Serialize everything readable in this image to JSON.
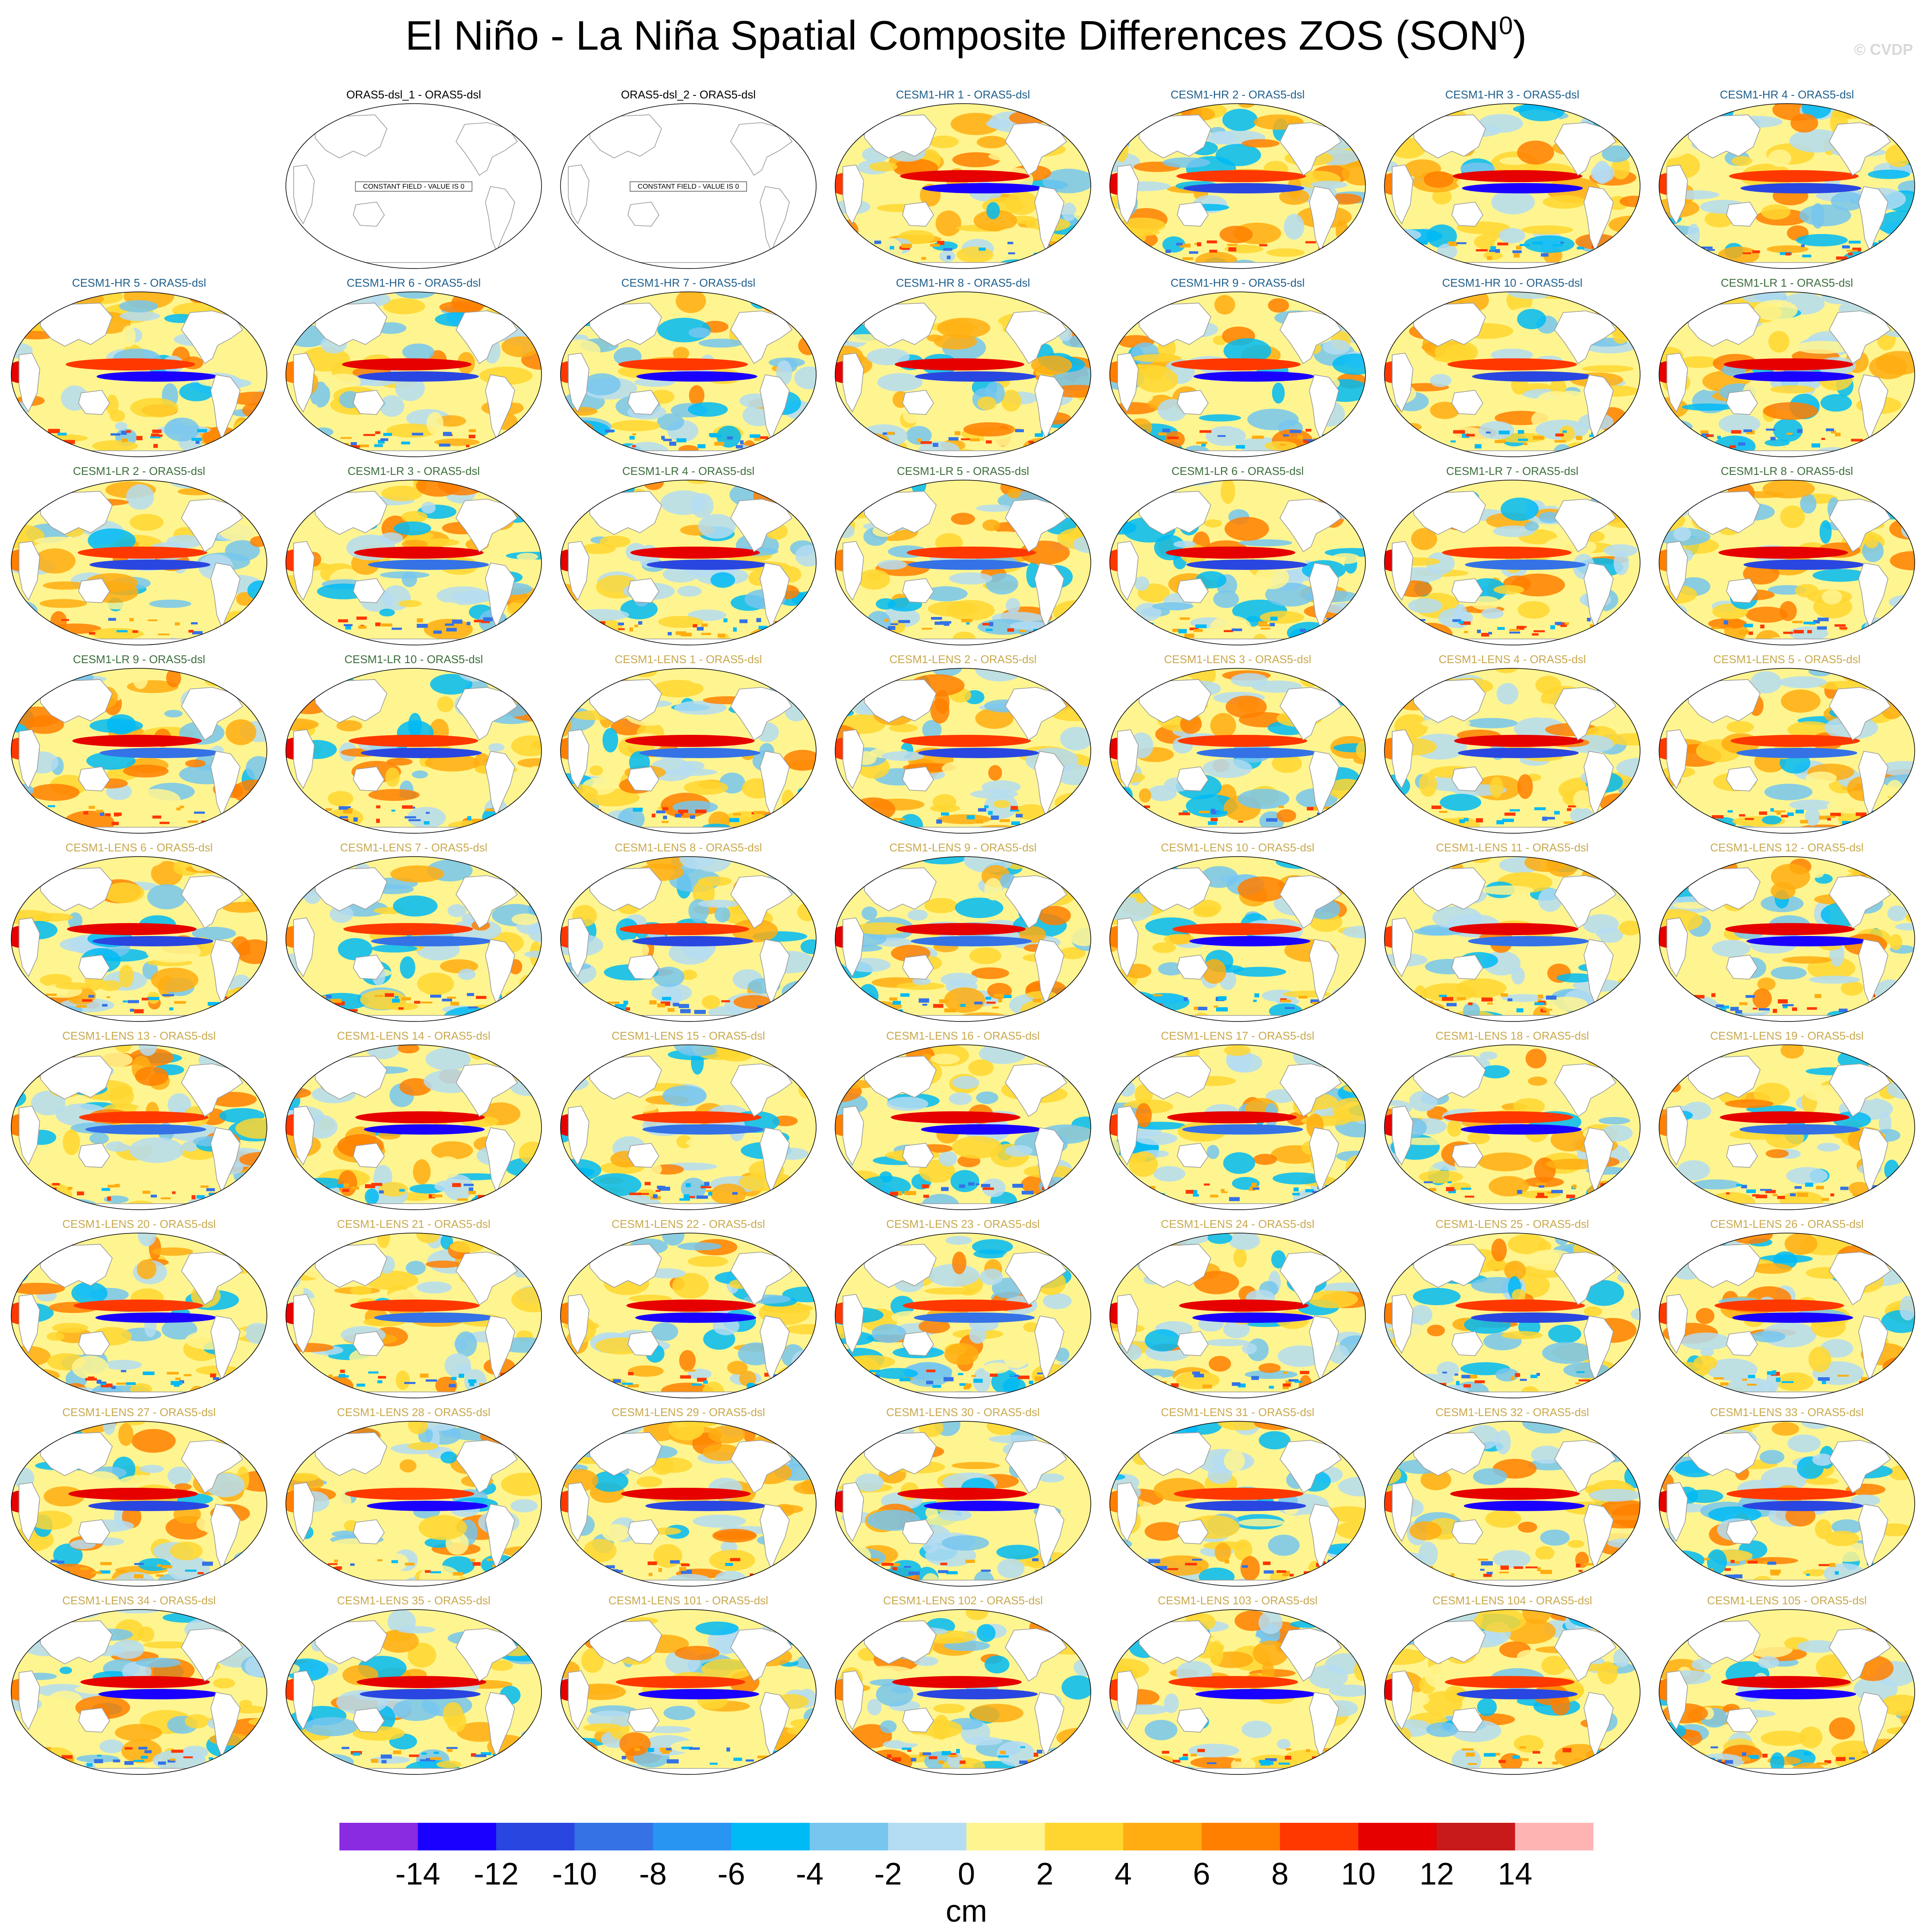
{
  "title": "El Niño - La Niña Spatial Composite Differences ZOS (SON",
  "title_sup": "0",
  "title_end": ")",
  "watermark": "© CVDP",
  "constant_field_label": "CONSTANT FIELD - VALUE IS 0",
  "group_colors": {
    "ORAS5": "#000000",
    "CESM1-HR": "#1f5f8c",
    "CESM1-LR": "#3c6e3c",
    "CESM1-LENS": "#c9a94e"
  },
  "panels": [
    {
      "title": "ORAS5-dsl_1 - ORAS5-dsl",
      "group": "ORAS5",
      "constant": true
    },
    {
      "title": "ORAS5-dsl_2 - ORAS5-dsl",
      "group": "ORAS5",
      "constant": true
    },
    {
      "title": "CESM1-HR 1 - ORAS5-dsl",
      "group": "CESM1-HR"
    },
    {
      "title": "CESM1-HR 2 - ORAS5-dsl",
      "group": "CESM1-HR"
    },
    {
      "title": "CESM1-HR 3 - ORAS5-dsl",
      "group": "CESM1-HR"
    },
    {
      "title": "CESM1-HR 4 - ORAS5-dsl",
      "group": "CESM1-HR"
    },
    {
      "title": "CESM1-HR 5 - ORAS5-dsl",
      "group": "CESM1-HR"
    },
    {
      "title": "CESM1-HR 6 - ORAS5-dsl",
      "group": "CESM1-HR"
    },
    {
      "title": "CESM1-HR 7 - ORAS5-dsl",
      "group": "CESM1-HR"
    },
    {
      "title": "CESM1-HR 8 - ORAS5-dsl",
      "group": "CESM1-HR"
    },
    {
      "title": "CESM1-HR 9 - ORAS5-dsl",
      "group": "CESM1-HR"
    },
    {
      "title": "CESM1-HR 10 - ORAS5-dsl",
      "group": "CESM1-HR"
    },
    {
      "title": "CESM1-LR 1 - ORAS5-dsl",
      "group": "CESM1-LR"
    },
    {
      "title": "CESM1-LR 2 - ORAS5-dsl",
      "group": "CESM1-LR"
    },
    {
      "title": "CESM1-LR 3 - ORAS5-dsl",
      "group": "CESM1-LR"
    },
    {
      "title": "CESM1-LR 4 - ORAS5-dsl",
      "group": "CESM1-LR"
    },
    {
      "title": "CESM1-LR 5 - ORAS5-dsl",
      "group": "CESM1-LR"
    },
    {
      "title": "CESM1-LR 6 - ORAS5-dsl",
      "group": "CESM1-LR"
    },
    {
      "title": "CESM1-LR 7 - ORAS5-dsl",
      "group": "CESM1-LR"
    },
    {
      "title": "CESM1-LR 8 - ORAS5-dsl",
      "group": "CESM1-LR"
    },
    {
      "title": "CESM1-LR 9 - ORAS5-dsl",
      "group": "CESM1-LR"
    },
    {
      "title": "CESM1-LR 10 - ORAS5-dsl",
      "group": "CESM1-LR"
    },
    {
      "title": "CESM1-LENS 1 - ORAS5-dsl",
      "group": "CESM1-LENS"
    },
    {
      "title": "CESM1-LENS 2 - ORAS5-dsl",
      "group": "CESM1-LENS"
    },
    {
      "title": "CESM1-LENS 3 - ORAS5-dsl",
      "group": "CESM1-LENS"
    },
    {
      "title": "CESM1-LENS 4 - ORAS5-dsl",
      "group": "CESM1-LENS"
    },
    {
      "title": "CESM1-LENS 5 - ORAS5-dsl",
      "group": "CESM1-LENS"
    },
    {
      "title": "CESM1-LENS 6 - ORAS5-dsl",
      "group": "CESM1-LENS"
    },
    {
      "title": "CESM1-LENS 7 - ORAS5-dsl",
      "group": "CESM1-LENS"
    },
    {
      "title": "CESM1-LENS 8 - ORAS5-dsl",
      "group": "CESM1-LENS"
    },
    {
      "title": "CESM1-LENS 9 - ORAS5-dsl",
      "group": "CESM1-LENS"
    },
    {
      "title": "CESM1-LENS 10 - ORAS5-dsl",
      "group": "CESM1-LENS"
    },
    {
      "title": "CESM1-LENS 11 - ORAS5-dsl",
      "group": "CESM1-LENS"
    },
    {
      "title": "CESM1-LENS 12 - ORAS5-dsl",
      "group": "CESM1-LENS"
    },
    {
      "title": "CESM1-LENS 13 - ORAS5-dsl",
      "group": "CESM1-LENS"
    },
    {
      "title": "CESM1-LENS 14 - ORAS5-dsl",
      "group": "CESM1-LENS"
    },
    {
      "title": "CESM1-LENS 15 - ORAS5-dsl",
      "group": "CESM1-LENS"
    },
    {
      "title": "CESM1-LENS 16 - ORAS5-dsl",
      "group": "CESM1-LENS"
    },
    {
      "title": "CESM1-LENS 17 - ORAS5-dsl",
      "group": "CESM1-LENS"
    },
    {
      "title": "CESM1-LENS 18 - ORAS5-dsl",
      "group": "CESM1-LENS"
    },
    {
      "title": "CESM1-LENS 19 - ORAS5-dsl",
      "group": "CESM1-LENS"
    },
    {
      "title": "CESM1-LENS 20 - ORAS5-dsl",
      "group": "CESM1-LENS"
    },
    {
      "title": "CESM1-LENS 21 - ORAS5-dsl",
      "group": "CESM1-LENS"
    },
    {
      "title": "CESM1-LENS 22 - ORAS5-dsl",
      "group": "CESM1-LENS"
    },
    {
      "title": "CESM1-LENS 23 - ORAS5-dsl",
      "group": "CESM1-LENS"
    },
    {
      "title": "CESM1-LENS 24 - ORAS5-dsl",
      "group": "CESM1-LENS"
    },
    {
      "title": "CESM1-LENS 25 - ORAS5-dsl",
      "group": "CESM1-LENS"
    },
    {
      "title": "CESM1-LENS 26 - ORAS5-dsl",
      "group": "CESM1-LENS"
    },
    {
      "title": "CESM1-LENS 27 - ORAS5-dsl",
      "group": "CESM1-LENS"
    },
    {
      "title": "CESM1-LENS 28 - ORAS5-dsl",
      "group": "CESM1-LENS"
    },
    {
      "title": "CESM1-LENS 29 - ORAS5-dsl",
      "group": "CESM1-LENS"
    },
    {
      "title": "CESM1-LENS 30 - ORAS5-dsl",
      "group": "CESM1-LENS"
    },
    {
      "title": "CESM1-LENS 31 - ORAS5-dsl",
      "group": "CESM1-LENS"
    },
    {
      "title": "CESM1-LENS 32 - ORAS5-dsl",
      "group": "CESM1-LENS"
    },
    {
      "title": "CESM1-LENS 33 - ORAS5-dsl",
      "group": "CESM1-LENS"
    },
    {
      "title": "CESM1-LENS 34 - ORAS5-dsl",
      "group": "CESM1-LENS"
    },
    {
      "title": "CESM1-LENS 35 - ORAS5-dsl",
      "group": "CESM1-LENS"
    },
    {
      "title": "CESM1-LENS 101 - ORAS5-dsl",
      "group": "CESM1-LENS"
    },
    {
      "title": "CESM1-LENS 102 - ORAS5-dsl",
      "group": "CESM1-LENS"
    },
    {
      "title": "CESM1-LENS 103 - ORAS5-dsl",
      "group": "CESM1-LENS"
    },
    {
      "title": "CESM1-LENS 104 - ORAS5-dsl",
      "group": "CESM1-LENS"
    },
    {
      "title": "CESM1-LENS 105 - ORAS5-dsl",
      "group": "CESM1-LENS"
    }
  ],
  "colorbar": {
    "unit": "cm",
    "min": -16,
    "max": 16,
    "tick_labels": [
      "-14",
      "-12",
      "-10",
      "-8",
      "-6",
      "-4",
      "-2",
      "0",
      "2",
      "4",
      "6",
      "8",
      "10",
      "12",
      "14"
    ],
    "colors": [
      "#8a2be2",
      "#1a00ff",
      "#2a46e0",
      "#3472e6",
      "#2895f2",
      "#00baf5",
      "#76c6ef",
      "#b4dcf2",
      "#fff590",
      "#ffd630",
      "#ffad10",
      "#ff7f00",
      "#ff3800",
      "#e60000",
      "#c81a1a",
      "#ffb4b4"
    ]
  }
}
